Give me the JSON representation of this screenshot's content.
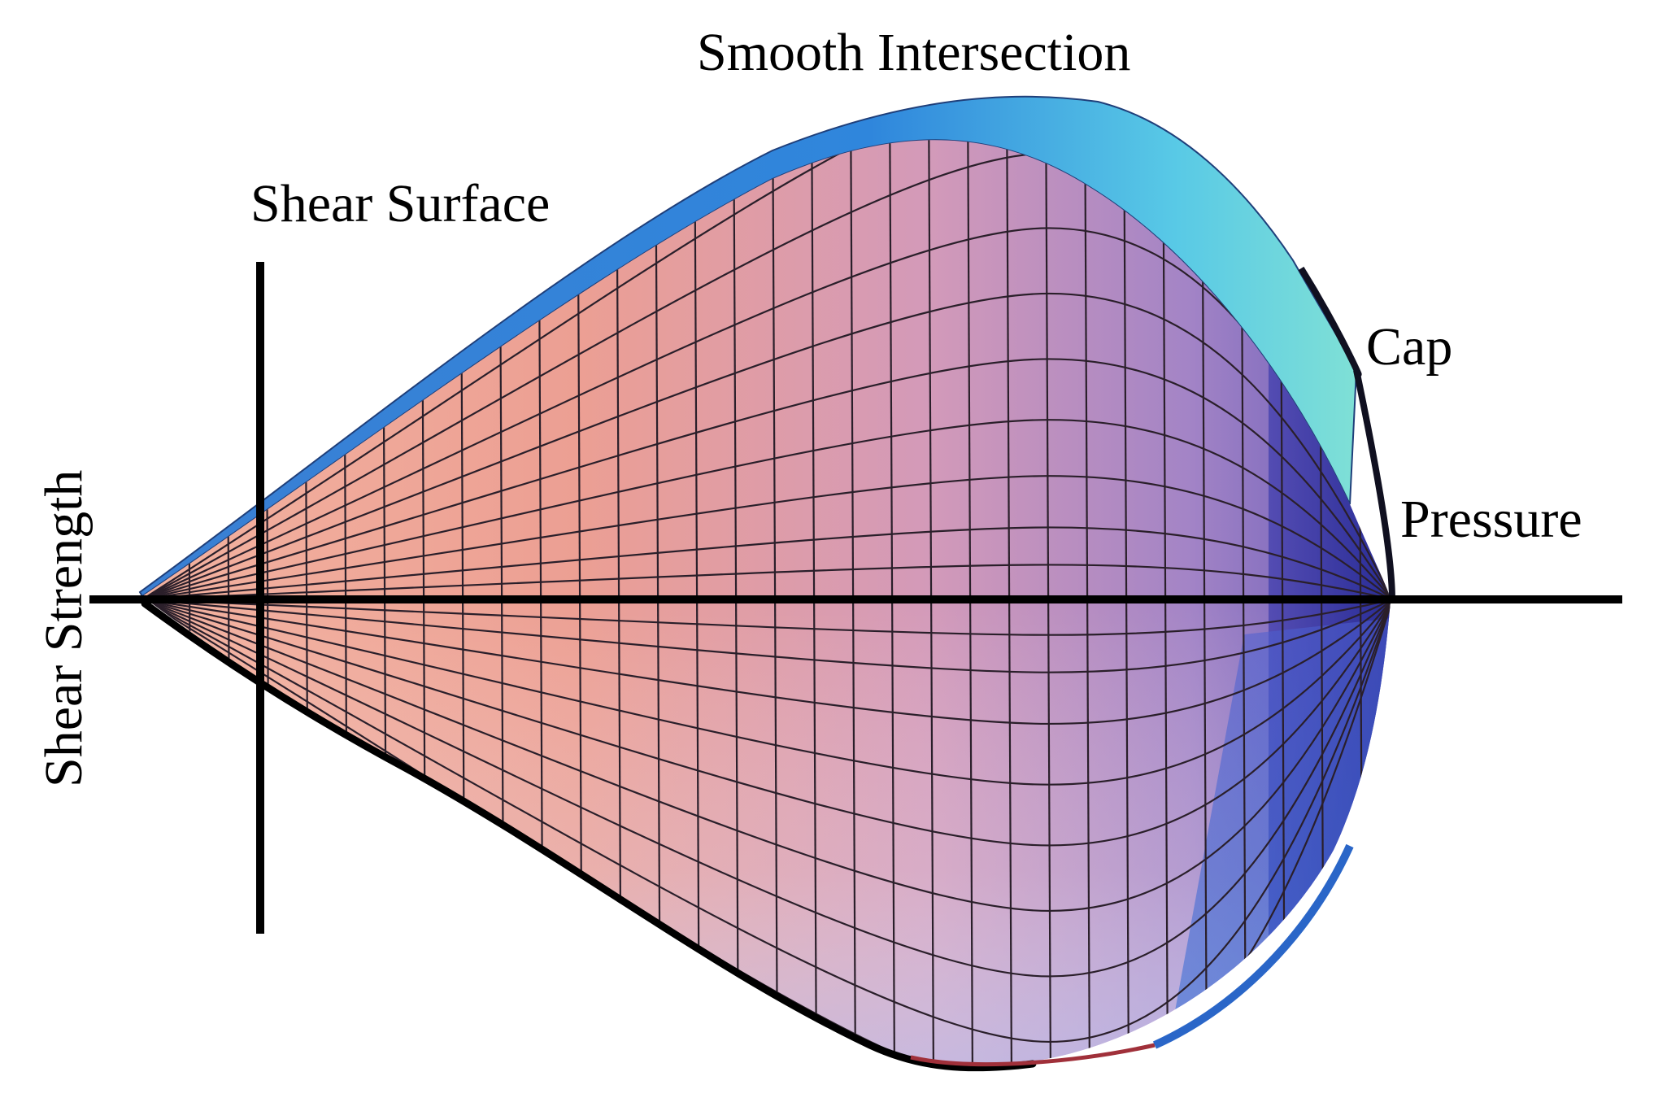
{
  "labels": {
    "smooth_intersection": "Smooth Intersection",
    "shear_surface": "Shear Surface",
    "cap": "Cap",
    "pressure": "Pressure",
    "shear_strength": "Shear Strength"
  },
  "colors": {
    "background": "#ffffff",
    "axis": "#000000",
    "surface_warm": "#f0a896",
    "surface_mid": "#d58fb4",
    "surface_cool": "#7d6cc0",
    "cap_dark": "#2b2fa8",
    "rim_blue": "#3a86d8",
    "rim_cyan": "#5ed6d6",
    "mesh": "#2a1f2a"
  }
}
